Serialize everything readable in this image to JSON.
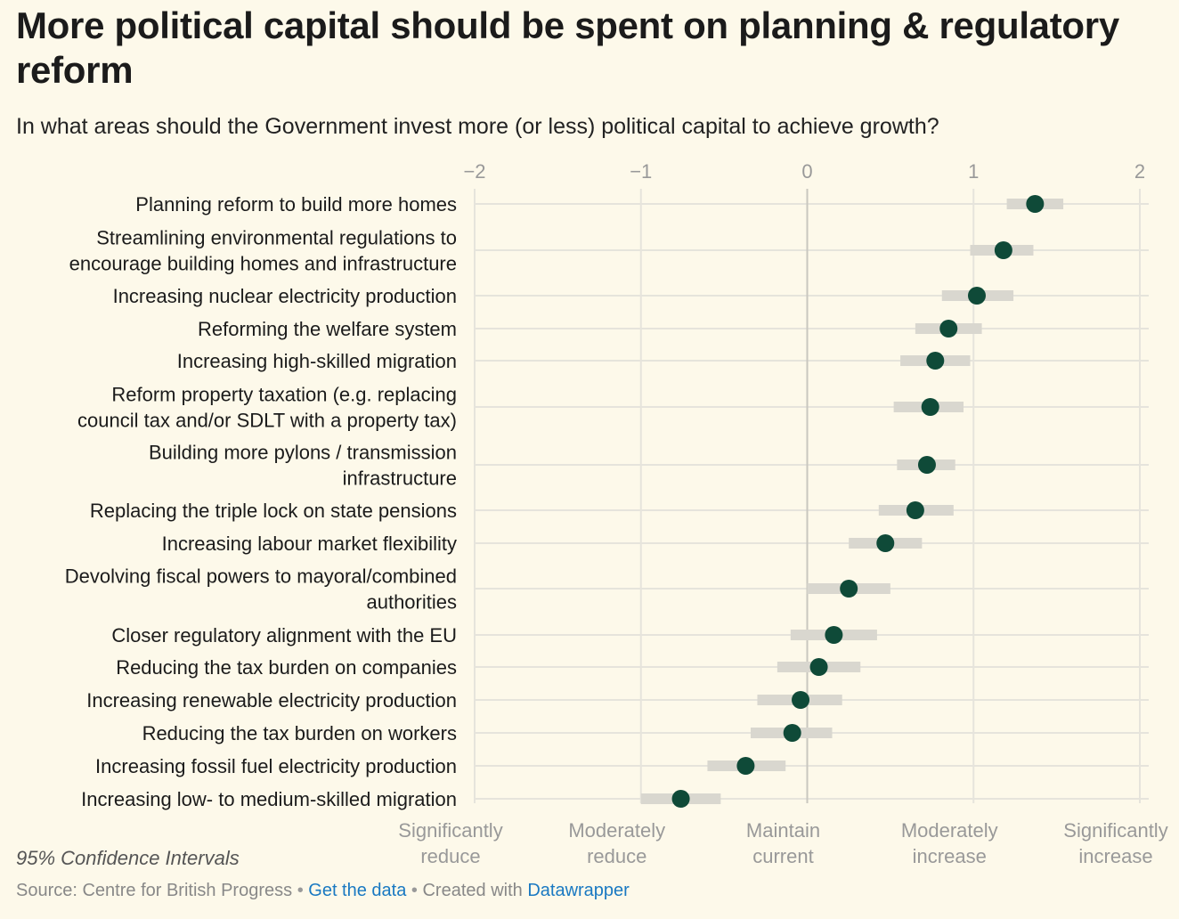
{
  "header": {
    "title": "More political capital should be spent on planning & regulatory reform",
    "subtitle": "In what areas should the Government invest more (or less) political capital to achieve growth?"
  },
  "footer": {
    "note": "95% Confidence Intervals",
    "source_label": "Source: Centre for British Progress",
    "separator": "•",
    "get_data_label": "Get the data",
    "created_with_label": "Created with",
    "datawrapper_label": "Datawrapper"
  },
  "colors": {
    "background": "#fdf9ea",
    "dot": "#0f4a38",
    "ci_bar": "#d9d7cf",
    "grid": "#e6e4dc",
    "zero_line": "#c9c7bf",
    "tick_text": "#999999",
    "link": "#1a79c2"
  },
  "chart_data": {
    "type": "dot-range",
    "title": "More political capital should be spent on planning & regulatory reform",
    "subtitle": "In what areas should the Government invest more (or less) political capital to achieve growth?",
    "xlim": [
      -2,
      2
    ],
    "x_ticks": [
      {
        "value": -2,
        "label": "−2"
      },
      {
        "value": -1,
        "label": "−1"
      },
      {
        "value": 0,
        "label": "0"
      },
      {
        "value": 1,
        "label": "1"
      },
      {
        "value": 2,
        "label": "2"
      }
    ],
    "x_scale_labels": [
      {
        "value": -2,
        "lines": [
          "Significantly",
          "reduce"
        ]
      },
      {
        "value": -1,
        "lines": [
          "Moderately",
          "reduce"
        ]
      },
      {
        "value": 0,
        "lines": [
          "Maintain",
          "current"
        ]
      },
      {
        "value": 1,
        "lines": [
          "Moderately",
          "increase"
        ]
      },
      {
        "value": 2,
        "lines": [
          "Significantly",
          "increase"
        ]
      }
    ],
    "interval": "95% Confidence Intervals",
    "rows": [
      {
        "lines": [
          "Planning reform to build more homes"
        ],
        "value": 1.37,
        "low": 1.2,
        "high": 1.54
      },
      {
        "lines": [
          "Streamlining environmental regulations to",
          "encourage building homes and infrastructure"
        ],
        "value": 1.18,
        "low": 0.98,
        "high": 1.36
      },
      {
        "lines": [
          "Increasing nuclear electricity production"
        ],
        "value": 1.02,
        "low": 0.81,
        "high": 1.24
      },
      {
        "lines": [
          "Reforming the welfare system"
        ],
        "value": 0.85,
        "low": 0.65,
        "high": 1.05
      },
      {
        "lines": [
          "Increasing high-skilled migration"
        ],
        "value": 0.77,
        "low": 0.56,
        "high": 0.98
      },
      {
        "lines": [
          "Reform property taxation (e.g. replacing",
          "council tax and/or SDLT with a property tax)"
        ],
        "value": 0.74,
        "low": 0.52,
        "high": 0.94
      },
      {
        "lines": [
          "Building more pylons / transmission",
          "infrastructure"
        ],
        "value": 0.72,
        "low": 0.54,
        "high": 0.89
      },
      {
        "lines": [
          "Replacing the triple lock on state pensions"
        ],
        "value": 0.65,
        "low": 0.43,
        "high": 0.88
      },
      {
        "lines": [
          "Increasing labour market flexibility"
        ],
        "value": 0.47,
        "low": 0.25,
        "high": 0.69
      },
      {
        "lines": [
          "Devolving fiscal powers to mayoral/combined",
          "authorities"
        ],
        "value": 0.25,
        "low": 0.0,
        "high": 0.5
      },
      {
        "lines": [
          "Closer regulatory alignment with the EU"
        ],
        "value": 0.16,
        "low": -0.1,
        "high": 0.42
      },
      {
        "lines": [
          "Reducing the tax burden on companies"
        ],
        "value": 0.07,
        "low": -0.18,
        "high": 0.32
      },
      {
        "lines": [
          "Increasing renewable electricity production"
        ],
        "value": -0.04,
        "low": -0.3,
        "high": 0.21
      },
      {
        "lines": [
          "Reducing the tax burden on workers"
        ],
        "value": -0.09,
        "low": -0.34,
        "high": 0.15
      },
      {
        "lines": [
          "Increasing fossil fuel electricity production"
        ],
        "value": -0.37,
        "low": -0.6,
        "high": -0.13
      },
      {
        "lines": [
          "Increasing low- to medium-skilled migration"
        ],
        "value": -0.76,
        "low": -1.0,
        "high": -0.52
      }
    ]
  }
}
